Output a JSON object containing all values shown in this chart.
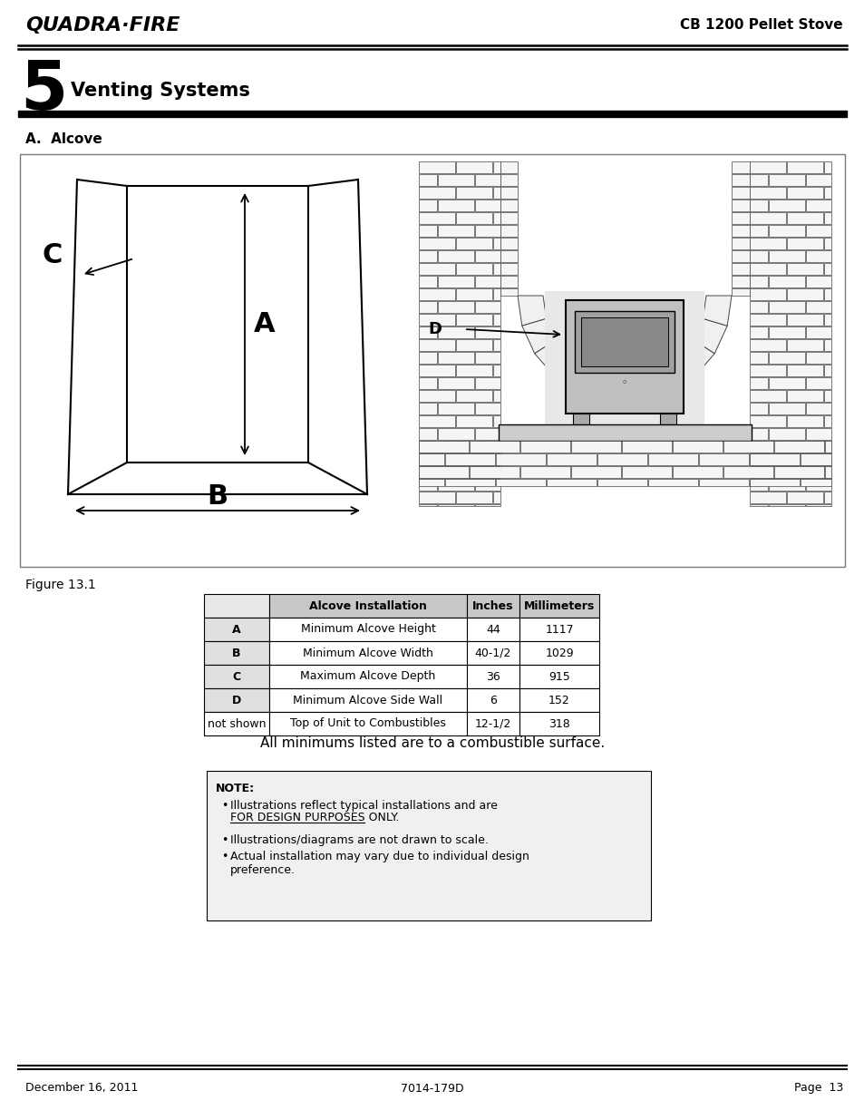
{
  "page_title": "CB 1200 Pellet Stove",
  "logo_text": "QUADRA·FIRE",
  "section_number": "5",
  "section_title": "Venting Systems",
  "subsection": "A.  Alcove",
  "figure_label": "Figure 13.1",
  "table_headers": [
    "",
    "Alcove Installation",
    "Inches",
    "Millimeters"
  ],
  "table_rows": [
    [
      "A",
      "Minimum Alcove Height",
      "44",
      "1117"
    ],
    [
      "B",
      "Minimum Alcove Width",
      "40-1/2",
      "1029"
    ],
    [
      "C",
      "Maximum Alcove Depth",
      "36",
      "915"
    ],
    [
      "D",
      "Minimum Alcove Side Wall",
      "6",
      "152"
    ],
    [
      "not shown",
      "Top of Unit to Combustibles",
      "12-1/2",
      "318"
    ]
  ],
  "note_title": "NOTE:",
  "note_bullet1_pre": "Illustrations reflect typical installations and are ",
  "note_bullet1_ul": "FOR DESIGN PURPOSES ONLY.",
  "note_bullet2": "Illustrations/diagrams are not drawn to scale.",
  "note_bullet3": "Actual installation may vary due to individual design\npreference.",
  "minimums_text": "All minimums listed are to a combustible surface.",
  "footer_left": "December 16, 2011",
  "footer_center": "7014-179D",
  "footer_right": "Page  13",
  "bg_color": "#ffffff",
  "text_color": "#000000",
  "table_header_bg": "#c8c8c8",
  "table_bold_col_bg": "#e0e0e0",
  "note_bg": "#f0f0f0"
}
